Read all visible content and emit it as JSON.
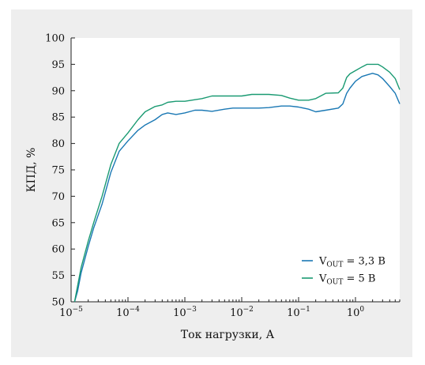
{
  "chart_data": {
    "type": "line",
    "title": "",
    "xlabel": "Ток нагрузки, А",
    "ylabel": "КПД, %",
    "x_scale": "log",
    "xlim": [
      1e-05,
      6
    ],
    "ylim": [
      50,
      100
    ],
    "x_ticks": [
      {
        "value": 1e-05,
        "base": "10",
        "exp": "−5"
      },
      {
        "value": 0.0001,
        "base": "10",
        "exp": "−4"
      },
      {
        "value": 0.001,
        "base": "10",
        "exp": "−3"
      },
      {
        "value": 0.01,
        "base": "10",
        "exp": "−2"
      },
      {
        "value": 0.1,
        "base": "10",
        "exp": "−1"
      },
      {
        "value": 1,
        "base": "10",
        "exp": "0"
      }
    ],
    "y_ticks": [
      50,
      55,
      60,
      65,
      70,
      75,
      80,
      85,
      90,
      95,
      100
    ],
    "grid": false,
    "legend_position": "bottom-right",
    "series": [
      {
        "legend": {
          "main": "V",
          "sub": "OUT",
          "rest": " = 3,3 В"
        },
        "color": "#1a78b4",
        "points": [
          [
            1.15e-05,
            50
          ],
          [
            1.3e-05,
            52
          ],
          [
            1.5e-05,
            55.5
          ],
          [
            2e-05,
            60.5
          ],
          [
            2.5e-05,
            64
          ],
          [
            3.5e-05,
            68.5
          ],
          [
            5e-05,
            74.5
          ],
          [
            7e-05,
            78.5
          ],
          [
            0.0001,
            80.5
          ],
          [
            0.00015,
            82.5
          ],
          [
            0.0002,
            83.5
          ],
          [
            0.0003,
            84.5
          ],
          [
            0.0004,
            85.5
          ],
          [
            0.0005,
            85.8
          ],
          [
            0.0007,
            85.5
          ],
          [
            0.001,
            85.8
          ],
          [
            0.0015,
            86.3
          ],
          [
            0.002,
            86.3
          ],
          [
            0.003,
            86.1
          ],
          [
            0.005,
            86.5
          ],
          [
            0.007,
            86.7
          ],
          [
            0.01,
            86.7
          ],
          [
            0.015,
            86.7
          ],
          [
            0.02,
            86.7
          ],
          [
            0.03,
            86.8
          ],
          [
            0.05,
            87.1
          ],
          [
            0.07,
            87.1
          ],
          [
            0.1,
            86.9
          ],
          [
            0.15,
            86.5
          ],
          [
            0.2,
            86
          ],
          [
            0.3,
            86.3
          ],
          [
            0.5,
            86.7
          ],
          [
            0.6,
            87.5
          ],
          [
            0.7,
            89.5
          ],
          [
            0.8,
            90.5
          ],
          [
            1,
            91.8
          ],
          [
            1.3,
            92.7
          ],
          [
            1.6,
            93
          ],
          [
            2,
            93.3
          ],
          [
            2.5,
            93
          ],
          [
            3,
            92.3
          ],
          [
            4,
            90.8
          ],
          [
            5,
            89.5
          ],
          [
            6,
            87.5
          ]
        ]
      },
      {
        "legend": {
          "main": "V",
          "sub": "OUT",
          "rest": " = 5 В"
        },
        "color": "#1a9a72",
        "points": [
          [
            1.15e-05,
            50
          ],
          [
            1.3e-05,
            53
          ],
          [
            1.5e-05,
            56.5
          ],
          [
            2e-05,
            61.5
          ],
          [
            2.5e-05,
            65
          ],
          [
            3.5e-05,
            70
          ],
          [
            5e-05,
            76
          ],
          [
            7e-05,
            80
          ],
          [
            0.0001,
            82
          ],
          [
            0.00015,
            84.5
          ],
          [
            0.0002,
            86
          ],
          [
            0.0003,
            87
          ],
          [
            0.0004,
            87.3
          ],
          [
            0.0005,
            87.8
          ],
          [
            0.0007,
            88
          ],
          [
            0.001,
            88
          ],
          [
            0.0015,
            88.3
          ],
          [
            0.002,
            88.5
          ],
          [
            0.003,
            89
          ],
          [
            0.005,
            89
          ],
          [
            0.007,
            89
          ],
          [
            0.01,
            89
          ],
          [
            0.015,
            89.3
          ],
          [
            0.02,
            89.3
          ],
          [
            0.03,
            89.3
          ],
          [
            0.05,
            89.1
          ],
          [
            0.07,
            88.6
          ],
          [
            0.1,
            88.2
          ],
          [
            0.15,
            88.2
          ],
          [
            0.2,
            88.5
          ],
          [
            0.3,
            89.5
          ],
          [
            0.5,
            89.6
          ],
          [
            0.6,
            90.5
          ],
          [
            0.7,
            92.5
          ],
          [
            0.8,
            93.2
          ],
          [
            1,
            93.8
          ],
          [
            1.3,
            94.5
          ],
          [
            1.6,
            95
          ],
          [
            2,
            95
          ],
          [
            2.5,
            95
          ],
          [
            3,
            94.5
          ],
          [
            4,
            93.5
          ],
          [
            5,
            92.3
          ],
          [
            6,
            90.2
          ]
        ]
      }
    ]
  }
}
